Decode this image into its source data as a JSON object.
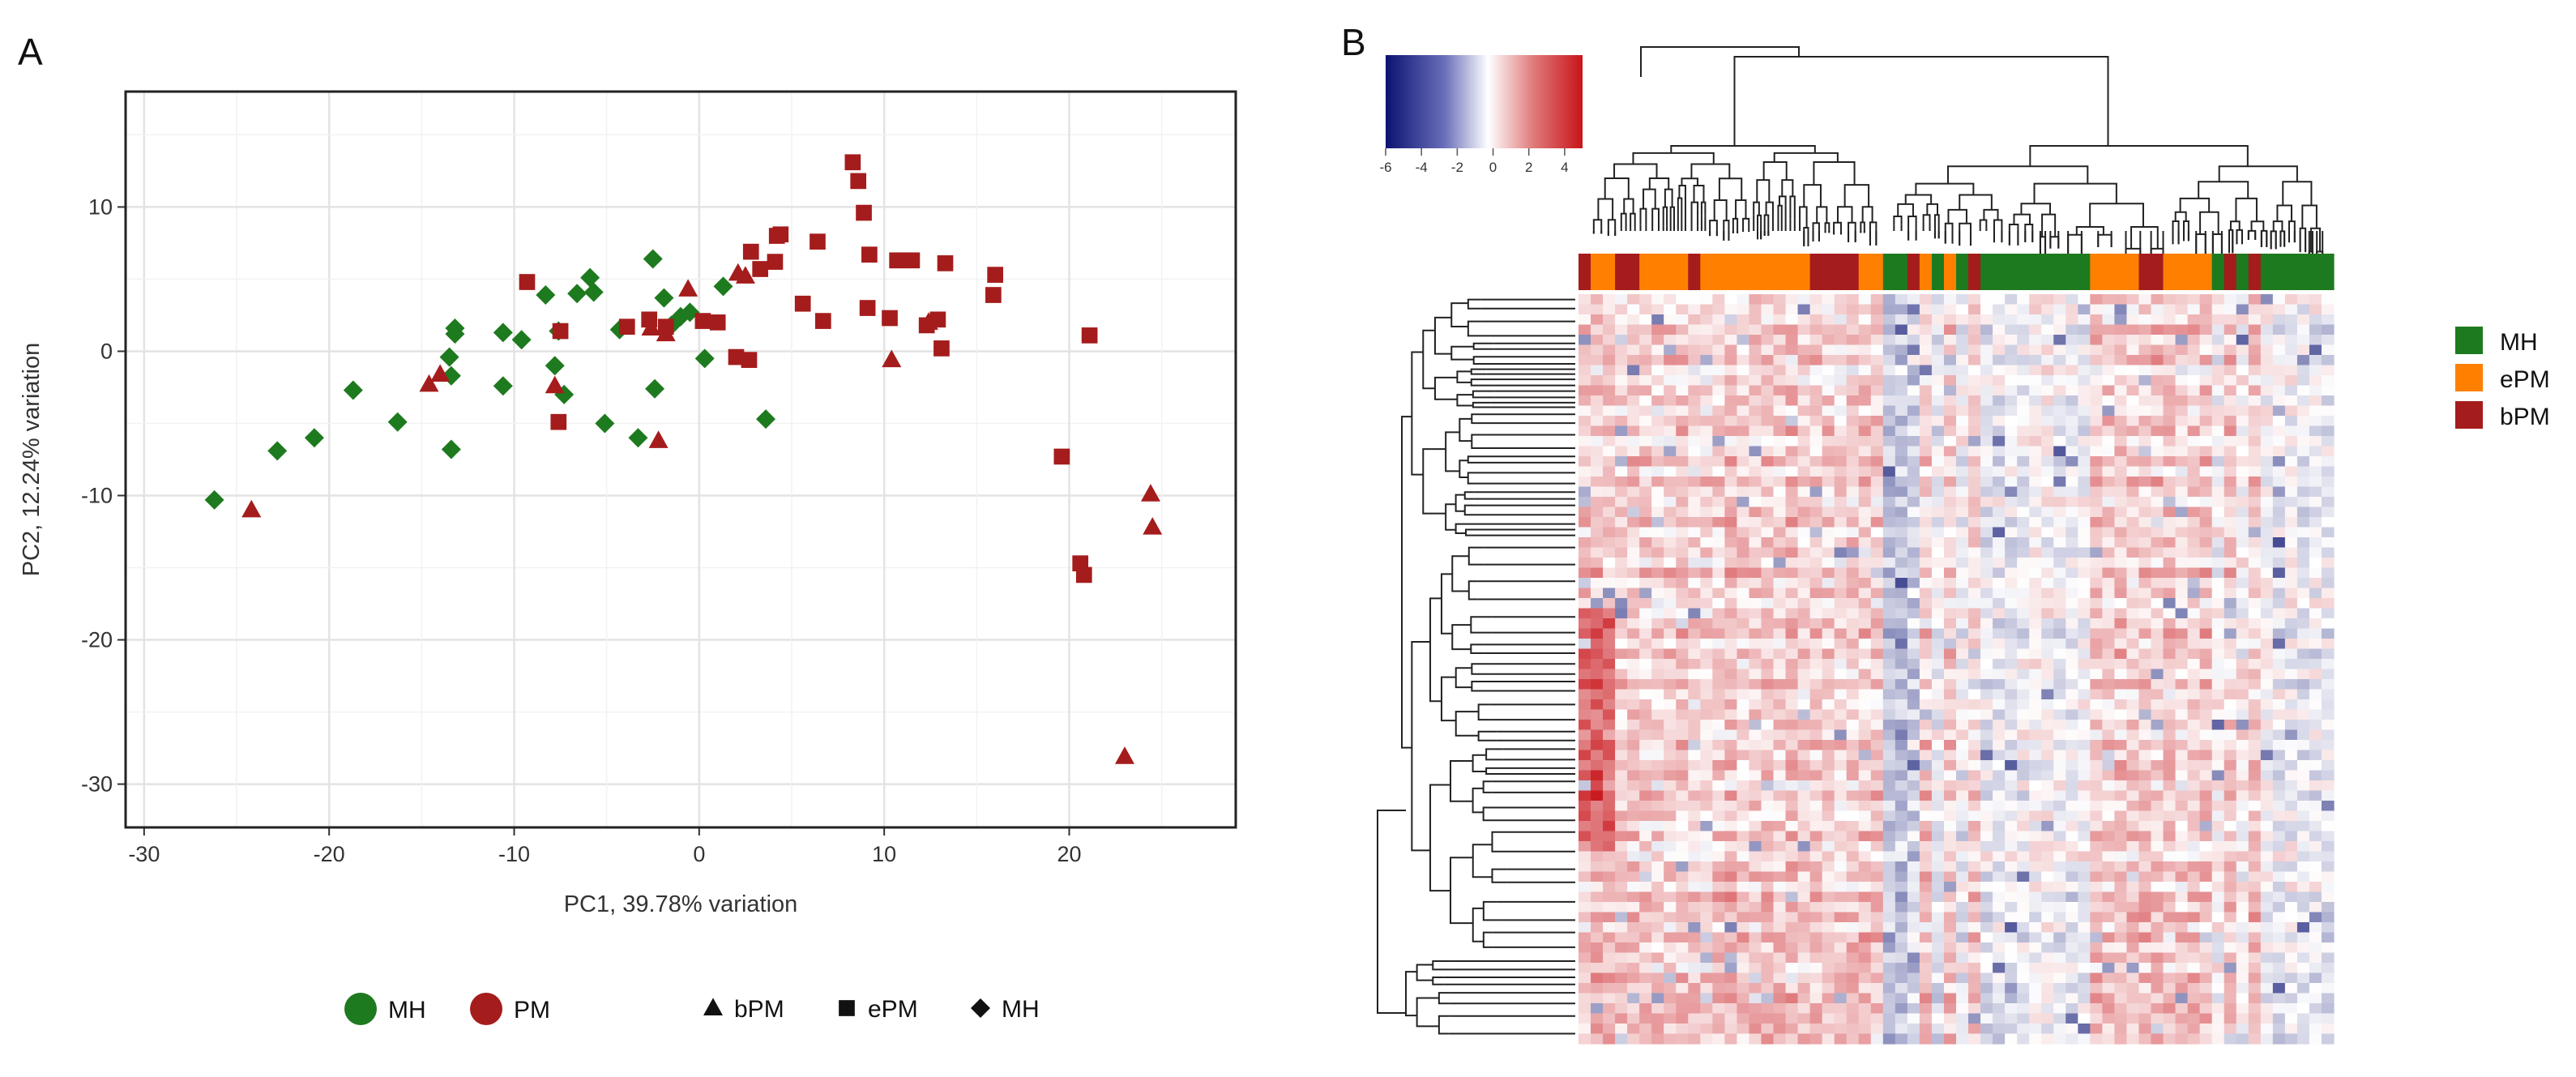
{
  "panels": {
    "a_label": "A",
    "b_label": "B"
  },
  "colors": {
    "MH": "#1e7a1e",
    "PM": "#a51c1c",
    "ePM": "#ff8000",
    "bPM": "#a51c1c",
    "heat_low": "#0b1272",
    "heat_mid": "#ffffff",
    "heat_high": "#c8141a",
    "grid": "#ebebeb"
  },
  "chart_data": [
    {
      "type": "scatter",
      "title": "",
      "xlabel": "PC1, 39.78% variation",
      "ylabel": "PC2, 12.24% variation",
      "xlim": [
        -31,
        29
      ],
      "ylim": [
        -33,
        18
      ],
      "xticks": [
        "-30",
        "-20",
        "-10",
        "0",
        "10",
        "20"
      ],
      "yticks": [
        "10",
        "0",
        "-10",
        "-20",
        "-30"
      ],
      "grid": true,
      "legend": {
        "color_items": [
          {
            "label": "MH",
            "color": "#1e7a1e"
          },
          {
            "label": "PM",
            "color": "#a51c1c"
          }
        ],
        "shape_items": [
          {
            "label": "bPM",
            "shape": "triangle"
          },
          {
            "label": "ePM",
            "shape": "square"
          },
          {
            "label": "MH",
            "shape": "diamond"
          }
        ],
        "placement": "bottom"
      },
      "series": [
        {
          "group": "MH",
          "shape": "diamond",
          "color": "#1e7a1e",
          "points": [
            [
              -26.2,
              -10.3
            ],
            [
              -22.8,
              -6.9
            ],
            [
              -20.8,
              -6.0
            ],
            [
              -18.7,
              -2.7
            ],
            [
              -16.3,
              -4.9
            ],
            [
              -13.5,
              -0.4
            ],
            [
              -13.2,
              1.6
            ],
            [
              -13.4,
              -1.7
            ],
            [
              -13.2,
              1.2
            ],
            [
              -13.4,
              -6.8
            ],
            [
              -10.6,
              1.3
            ],
            [
              -10.6,
              -2.4
            ],
            [
              -9.6,
              0.8
            ],
            [
              -8.3,
              3.9
            ],
            [
              -7.6,
              1.4
            ],
            [
              -7.8,
              -1.0
            ],
            [
              -7.3,
              -3.0
            ],
            [
              -6.6,
              4.0
            ],
            [
              -5.9,
              5.1
            ],
            [
              -5.7,
              4.1
            ],
            [
              -5.1,
              -5.0
            ],
            [
              -4.3,
              1.5
            ],
            [
              -3.3,
              -6.0
            ],
            [
              -2.5,
              6.4
            ],
            [
              -2.4,
              -2.6
            ],
            [
              -1.5,
              1.8
            ],
            [
              -1.0,
              2.4
            ],
            [
              -1.9,
              3.7
            ],
            [
              -0.5,
              2.7
            ],
            [
              0.3,
              -0.5
            ],
            [
              1.3,
              4.5
            ],
            [
              3.6,
              -4.7
            ]
          ]
        },
        {
          "group": "ePM",
          "shape": "square",
          "color": "#a51c1c",
          "points": [
            [
              -9.3,
              4.8
            ],
            [
              -7.5,
              1.4
            ],
            [
              -7.6,
              -4.9
            ],
            [
              -3.9,
              1.7
            ],
            [
              -2.7,
              2.2
            ],
            [
              -1.8,
              1.7
            ],
            [
              0.2,
              2.1
            ],
            [
              1.0,
              2.0
            ],
            [
              2.0,
              -0.4
            ],
            [
              2.7,
              -0.6
            ],
            [
              2.8,
              6.9
            ],
            [
              3.3,
              5.7
            ],
            [
              4.2,
              8.0
            ],
            [
              4.4,
              8.1
            ],
            [
              4.1,
              6.2
            ],
            [
              5.6,
              3.3
            ],
            [
              6.4,
              7.6
            ],
            [
              6.7,
              2.1
            ],
            [
              8.3,
              13.1
            ],
            [
              8.6,
              11.8
            ],
            [
              8.9,
              9.6
            ],
            [
              9.2,
              6.7
            ],
            [
              9.1,
              3.0
            ],
            [
              10.3,
              2.3
            ],
            [
              10.7,
              6.3
            ],
            [
              11.5,
              6.3
            ],
            [
              12.3,
              1.8
            ],
            [
              12.9,
              2.2
            ],
            [
              13.1,
              0.2
            ],
            [
              13.3,
              6.1
            ],
            [
              16.0,
              5.3
            ],
            [
              15.9,
              3.9
            ],
            [
              19.6,
              -7.3
            ],
            [
              20.6,
              -14.7
            ],
            [
              20.8,
              -15.5
            ],
            [
              21.1,
              1.1
            ]
          ]
        },
        {
          "group": "bPM",
          "shape": "triangle",
          "color": "#a51c1c",
          "points": [
            [
              -24.2,
              -11.0
            ],
            [
              -14.6,
              -2.3
            ],
            [
              -14.0,
              -1.6
            ],
            [
              -7.8,
              -2.4
            ],
            [
              -2.6,
              1.6
            ],
            [
              -2.2,
              -6.2
            ],
            [
              -1.8,
              1.2
            ],
            [
              -0.6,
              4.3
            ],
            [
              2.1,
              5.4
            ],
            [
              2.5,
              5.2
            ],
            [
              10.4,
              -0.6
            ],
            [
              12.4,
              2.0
            ],
            [
              23.0,
              -28.1
            ],
            [
              24.4,
              -9.9
            ],
            [
              24.5,
              -12.2
            ]
          ]
        }
      ]
    },
    {
      "type": "heatmap",
      "title": "",
      "color_scale": {
        "min": -6,
        "max": 5,
        "ticks": [
          "-6",
          "-4",
          "-2",
          "0",
          "2",
          "4"
        ]
      },
      "column_annotation": {
        "categories": [
          "MH",
          "ePM",
          "bPM"
        ]
      },
      "legend": {
        "items": [
          {
            "label": "MH",
            "color": "#1e7a1e"
          },
          {
            "label": "ePM",
            "color": "#ff8000"
          },
          {
            "label": "bPM",
            "color": "#a51c1c"
          }
        ],
        "placement": "right"
      },
      "row_dendrogram": true,
      "column_dendrogram": true
    }
  ]
}
